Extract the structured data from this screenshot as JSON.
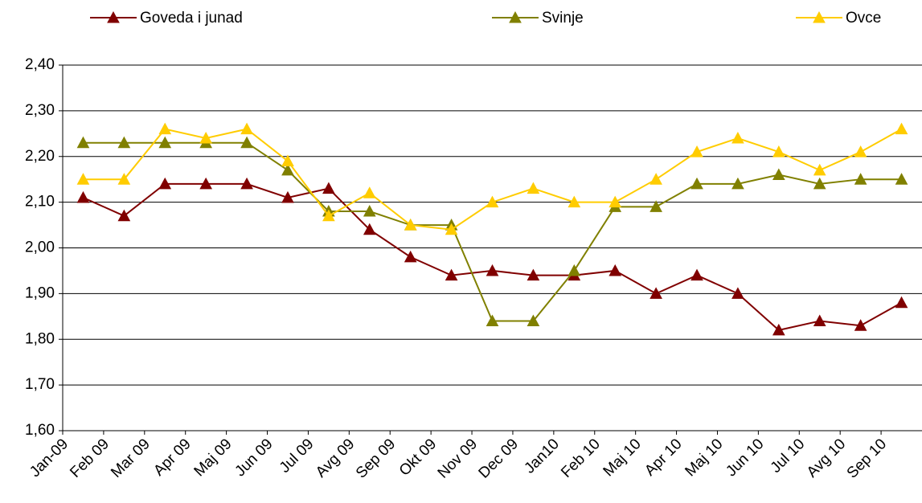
{
  "chart_data": {
    "type": "line",
    "categories": [
      "Jan-09",
      "Feb 09",
      "Mar 09",
      "Apr 09",
      "Maj 09",
      "Jun 09",
      "Jul 09",
      "Avg 09",
      "Sep 09",
      "Okt 09",
      "Nov 09",
      "Dec 09",
      "Jan10",
      "Feb 10",
      "Maj 10",
      "Apr 10",
      "Maj 10",
      "Jun 10",
      "Jul 10",
      "Avg 10",
      "Sep 10"
    ],
    "series": [
      {
        "name": "Goveda i junad",
        "color": "#800000",
        "values": [
          2.11,
          2.07,
          2.14,
          2.14,
          2.14,
          2.11,
          2.13,
          2.04,
          1.98,
          1.94,
          1.95,
          1.94,
          1.94,
          1.95,
          1.9,
          1.94,
          1.9,
          1.82,
          1.84,
          1.83,
          1.88
        ]
      },
      {
        "name": "Svinje",
        "color": "#808000",
        "values": [
          2.23,
          2.23,
          2.23,
          2.23,
          2.23,
          2.17,
          2.08,
          2.08,
          2.05,
          2.05,
          1.84,
          1.84,
          1.95,
          2.09,
          2.09,
          2.14,
          2.14,
          2.16,
          2.14,
          2.15,
          2.15
        ]
      },
      {
        "name": "Ovce",
        "color": "#ffcc00",
        "values": [
          2.15,
          2.15,
          2.26,
          2.24,
          2.26,
          2.19,
          2.07,
          2.12,
          2.05,
          2.04,
          2.1,
          2.13,
          2.1,
          2.1,
          2.15,
          2.21,
          2.24,
          2.21,
          2.17,
          2.21,
          2.26
        ]
      }
    ],
    "ylim": [
      1.6,
      2.4
    ],
    "yticks": [
      {
        "value": 1.6,
        "label": "1,60"
      },
      {
        "value": 1.7,
        "label": "1,70"
      },
      {
        "value": 1.8,
        "label": "1,80"
      },
      {
        "value": 1.9,
        "label": "1,90"
      },
      {
        "value": 2.0,
        "label": "2,00"
      },
      {
        "value": 2.1,
        "label": "2,10"
      },
      {
        "value": 2.2,
        "label": "2,20"
      },
      {
        "value": 2.3,
        "label": "2,30"
      },
      {
        "value": 2.4,
        "label": "2,40"
      }
    ],
    "grid": true,
    "legend": "top"
  }
}
